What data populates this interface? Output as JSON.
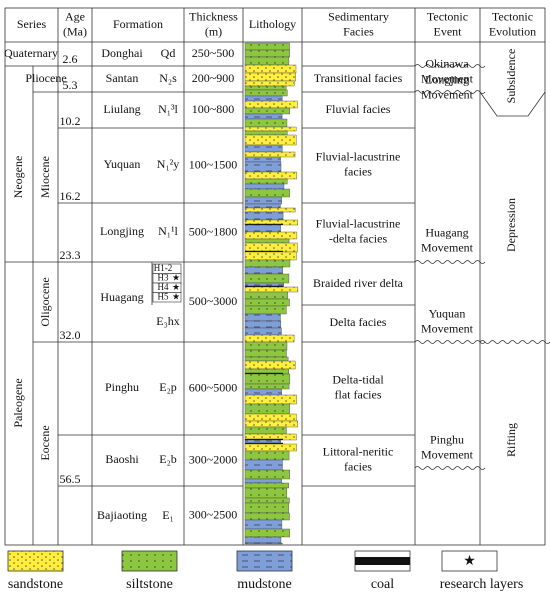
{
  "header": [
    [
      "Series"
    ],
    [
      "Age",
      "(Ma)"
    ],
    [
      "Formation"
    ],
    [
      "Thickness",
      "(m)"
    ],
    [
      "Lithology"
    ],
    [
      "Sedimentary",
      "Facies"
    ],
    [
      "Tectonic",
      "Event"
    ],
    [
      "Tectonic",
      "Evolution"
    ]
  ],
  "periods": [
    "Quaternary",
    "Neogene",
    "Paleogene"
  ],
  "epochs": [
    "Pliocene",
    "Miocene",
    "Oligocene",
    "Eocene"
  ],
  "ages": [
    "2.6",
    "5.3",
    "10.2",
    "16.2",
    "23.3",
    "32.0",
    "56.5"
  ],
  "formations": [
    {
      "name": "Donghai",
      "code": "Qd",
      "thickness": "250~500"
    },
    {
      "name": "Santan",
      "code": "N₂s",
      "thickness": "200~900"
    },
    {
      "name": "Liulang",
      "code": "N₁³l",
      "thickness": "100~800"
    },
    {
      "name": "Yuquan",
      "code": "N₁²y",
      "thickness": "100~1500"
    },
    {
      "name": "Longjing",
      "code": "N₁¹l",
      "thickness": "500~1800"
    },
    {
      "name": "Huagang",
      "code": "E₃hx",
      "thickness": "500~3000"
    },
    {
      "name": "Pinghu",
      "code": "E₂p",
      "thickness": "600~5000"
    },
    {
      "name": "Baoshi",
      "code": "E₂b",
      "thickness": "300~2000"
    },
    {
      "name": "Bajiaoting",
      "code": "E₁",
      "thickness": "300~2500"
    }
  ],
  "huagang_layers": [
    "H1-2",
    "H3",
    "H4",
    "H5"
  ],
  "facies": [
    [
      "Transitional facies"
    ],
    [
      "Fluvial facies"
    ],
    [
      "Fluvial-lacustrine",
      "facies"
    ],
    [
      "Fluvial-lacustrine",
      "-delta facies"
    ],
    [
      "Braided river delta"
    ],
    [
      "Delta facies"
    ],
    [
      "Delta-tidal",
      "flat facies"
    ],
    [
      "Littoral-neritic",
      "facies"
    ]
  ],
  "events": [
    [
      "Okinawa",
      "Movement"
    ],
    [
      "Longjing",
      "Movement"
    ],
    [
      "Huagang",
      "Movement"
    ],
    [
      "Yuquan",
      "Movement"
    ],
    [
      "Pinghu",
      "Movement"
    ]
  ],
  "evolution": [
    "Subsidence",
    "Depression",
    "Rifting"
  ],
  "legend": [
    "sandstone",
    "siltstone",
    "mudstone",
    "coal",
    "research layers"
  ]
}
